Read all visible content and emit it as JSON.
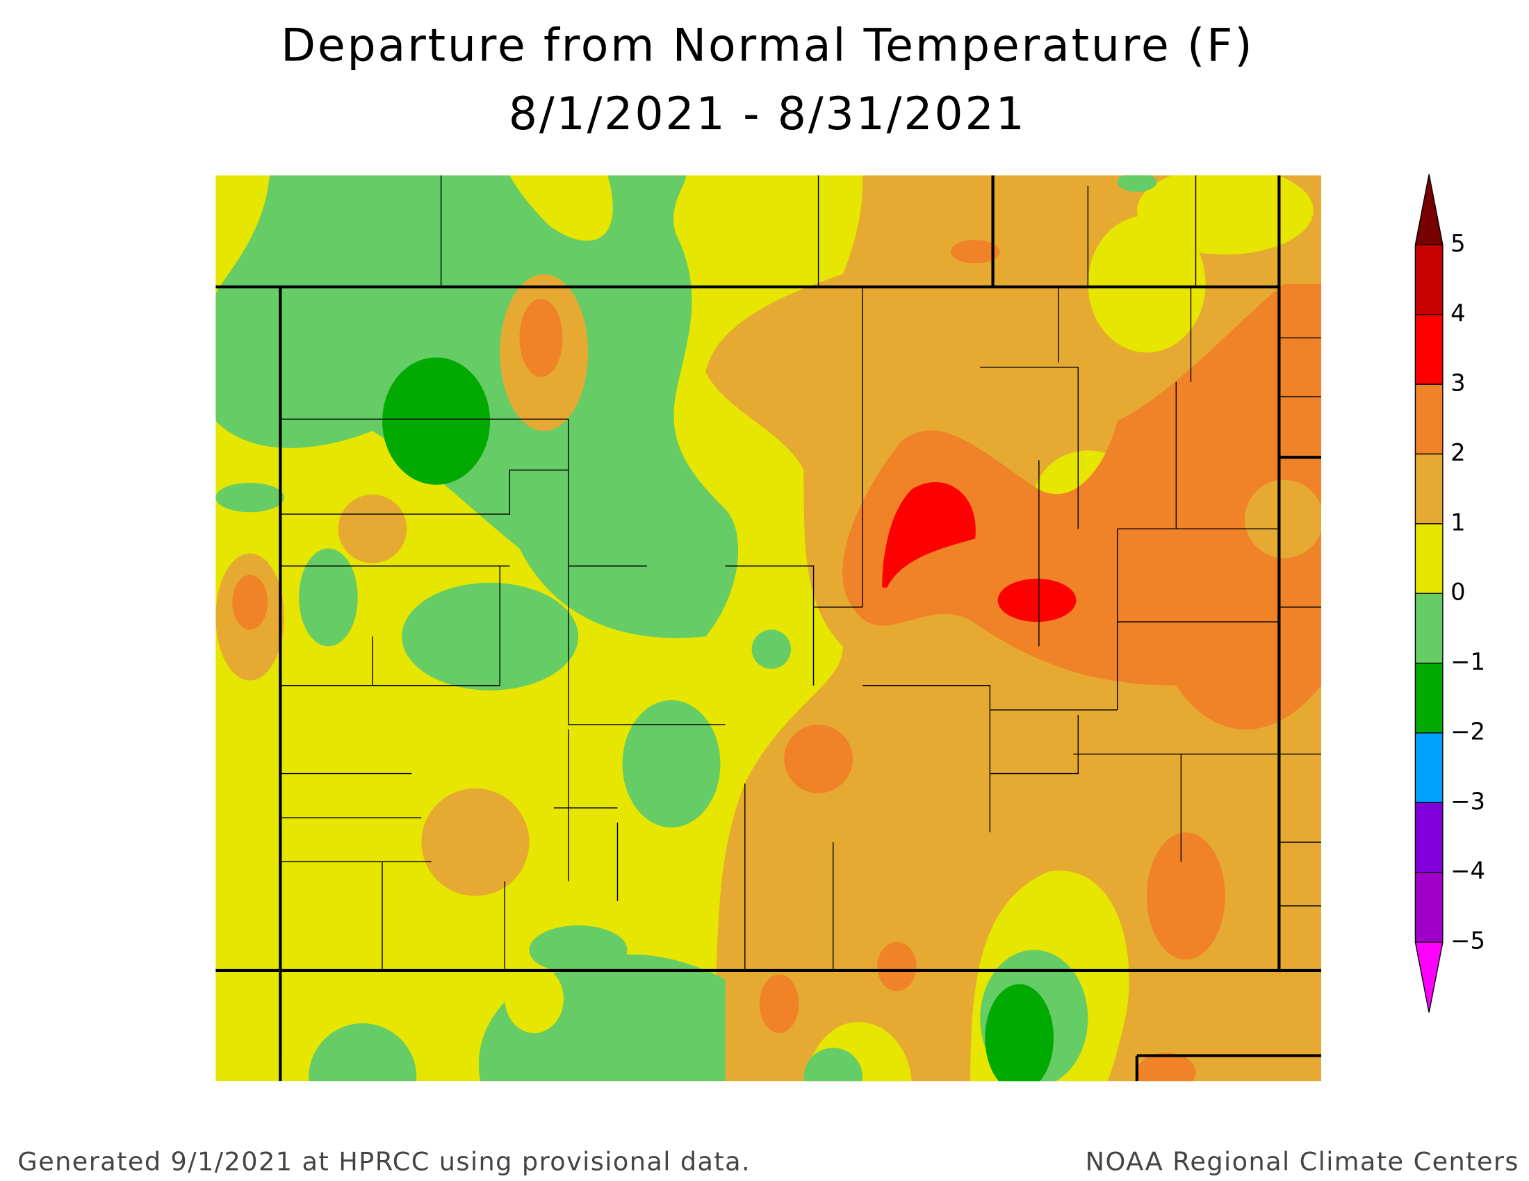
{
  "title": "Departure from Normal Temperature (F)",
  "subtitle": "8/1/2021 - 8/31/2021",
  "legend": {
    "ticks": [
      {
        "value": -5,
        "label": "−5"
      },
      {
        "value": -4,
        "label": "−4"
      },
      {
        "value": -3,
        "label": "−3"
      },
      {
        "value": -2,
        "label": "−2"
      },
      {
        "value": -1,
        "label": "−1"
      },
      0,
      1,
      2,
      3,
      4,
      5
    ],
    "colors": [
      "#a000c8",
      "#8200dc",
      "#00a0ff",
      "#00aa00",
      "#66cc66",
      "#e6e600",
      "#e6aa32",
      "#f08228",
      "#ff0000",
      "#c80000"
    ],
    "under_color": "#ff00ff",
    "over_color": "#780000"
  },
  "footer": {
    "left": "Generated 9/1/2021 at HPRCC using provisional data.",
    "right": "NOAA Regional Climate Centers"
  }
}
